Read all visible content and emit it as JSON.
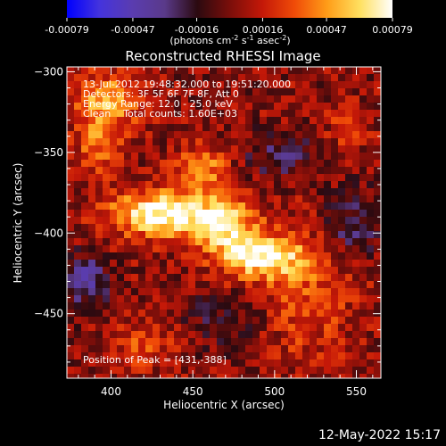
{
  "colorbar": {
    "ticks": [
      "-0.00079",
      "-0.00047",
      "-0.00016",
      "0.00016",
      "0.00047",
      "0.00079"
    ],
    "tick_values": [
      -0.00079,
      -0.00047,
      -0.00016,
      0.00016,
      0.00047,
      0.00079
    ],
    "units_main": "(photons cm",
    "units_exp1": "-2",
    "units_mid": " s",
    "units_exp2": "-1",
    "units_mid2": " asec",
    "units_exp3": "-2",
    "units_end": ")"
  },
  "plot": {
    "title": "Reconstructed RHESSI Image",
    "xlabel": "Heliocentric X (arcsec)",
    "ylabel": "Heliocentric Y (arcsec)",
    "info_lines": [
      "13-Jul-2012 19:48:32.000 to 19:51:20.000",
      "Detectors: 3F 5F 6F 7F 8F, Att 0",
      "Energy Range: 12.0 - 25.0 keV",
      "Clean    Total counts: 1.60E+03"
    ],
    "peak_label": "Position of Peak = [431,-388]"
  },
  "footer": {
    "date": "12-May-2022 15:17"
  },
  "colors": {
    "background": "#000000",
    "colormap": [
      "#0000ff",
      "#4433dd",
      "#5a3cb0",
      "#5a3a8a",
      "#2b0a10",
      "#7a0e0a",
      "#c41808",
      "#f04c08",
      "#ff9d18",
      "#ffe060",
      "#ffffff"
    ]
  },
  "chart_data": {
    "type": "heatmap",
    "title": "Reconstructed RHESSI Image",
    "xlabel": "Heliocentric X (arcsec)",
    "ylabel": "Heliocentric Y (arcsec)",
    "xlim": [
      373,
      565
    ],
    "ylim": [
      -490,
      -297
    ],
    "x_ticks": [
      400,
      450,
      500,
      550
    ],
    "y_ticks": [
      -300,
      -350,
      -400,
      -450
    ],
    "color_range": [
      -0.00079,
      0.00079
    ],
    "peak": {
      "x": 431,
      "y": -388
    },
    "sources": [
      {
        "x": 431,
        "y": -388,
        "intensity": 0.00079,
        "sigma_x": 22,
        "sigma_y": 10
      },
      {
        "x": 492,
        "y": -415,
        "intensity": 0.0007,
        "sigma_x": 18,
        "sigma_y": 9
      },
      {
        "x": 470,
        "y": -395,
        "intensity": 0.00055,
        "sigma_x": 14,
        "sigma_y": 12
      },
      {
        "x": 398,
        "y": -318,
        "intensity": 0.00045,
        "sigma_x": 15,
        "sigma_y": 12
      },
      {
        "x": 455,
        "y": -360,
        "intensity": 0.0004,
        "sigma_x": 12,
        "sigma_y": 10
      },
      {
        "x": 393,
        "y": -345,
        "intensity": 0.00035,
        "sigma_x": 10,
        "sigma_y": 12
      },
      {
        "x": 520,
        "y": -440,
        "intensity": 0.00025,
        "sigma_x": 20,
        "sigma_y": 30
      },
      {
        "x": 545,
        "y": -335,
        "intensity": 0.00022,
        "sigma_x": 9,
        "sigma_y": 9
      },
      {
        "x": 420,
        "y": -470,
        "intensity": 0.00025,
        "sigma_x": 14,
        "sigma_y": 10
      },
      {
        "x": 383,
        "y": -430,
        "intensity": -0.0004,
        "sigma_x": 10,
        "sigma_y": 12
      },
      {
        "x": 505,
        "y": -352,
        "intensity": -0.00028,
        "sigma_x": 16,
        "sigma_y": 10
      },
      {
        "x": 548,
        "y": -395,
        "intensity": -0.0003,
        "sigma_x": 12,
        "sigma_y": 14
      },
      {
        "x": 470,
        "y": -455,
        "intensity": -0.00018,
        "sigma_x": 18,
        "sigma_y": 12
      }
    ]
  }
}
